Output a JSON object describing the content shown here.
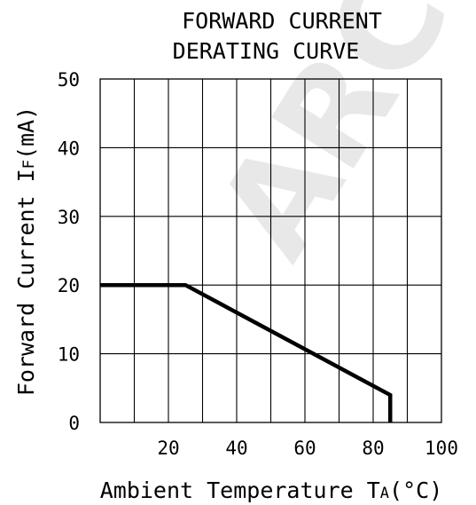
{
  "chart_data": {
    "type": "line",
    "title": [
      "FORWARD  CURRENT",
      "DERATING  CURVE"
    ],
    "xlabel": "Ambient Temperature T",
    "xlabel_sub": "A",
    "xlabel_unit": "(°C)",
    "ylabel": "Forward Current I",
    "ylabel_sub": "F",
    "ylabel_unit": "(mA)",
    "xlim": [
      0,
      100
    ],
    "ylim": [
      0,
      50
    ],
    "x_tick_labels": [
      "20",
      "40",
      "60",
      "80",
      "100"
    ],
    "x_tick_values": [
      20,
      40,
      60,
      80,
      100
    ],
    "y_tick_labels": [
      "0",
      "10",
      "20",
      "30",
      "40",
      "50"
    ],
    "y_tick_values": [
      0,
      10,
      20,
      30,
      40,
      50
    ],
    "grid": true,
    "grid_x_values": [
      10,
      20,
      30,
      40,
      50,
      60,
      70,
      80,
      90
    ],
    "grid_y_values": [
      10,
      20,
      30,
      40
    ],
    "series": [
      {
        "x": [
          0,
          25,
          85,
          85
        ],
        "y": [
          20,
          20,
          4,
          0
        ]
      }
    ],
    "colors": {
      "line": "#000000",
      "grid": "#000000",
      "watermark": "#e8e8e8"
    }
  },
  "watermark": "ARCH"
}
